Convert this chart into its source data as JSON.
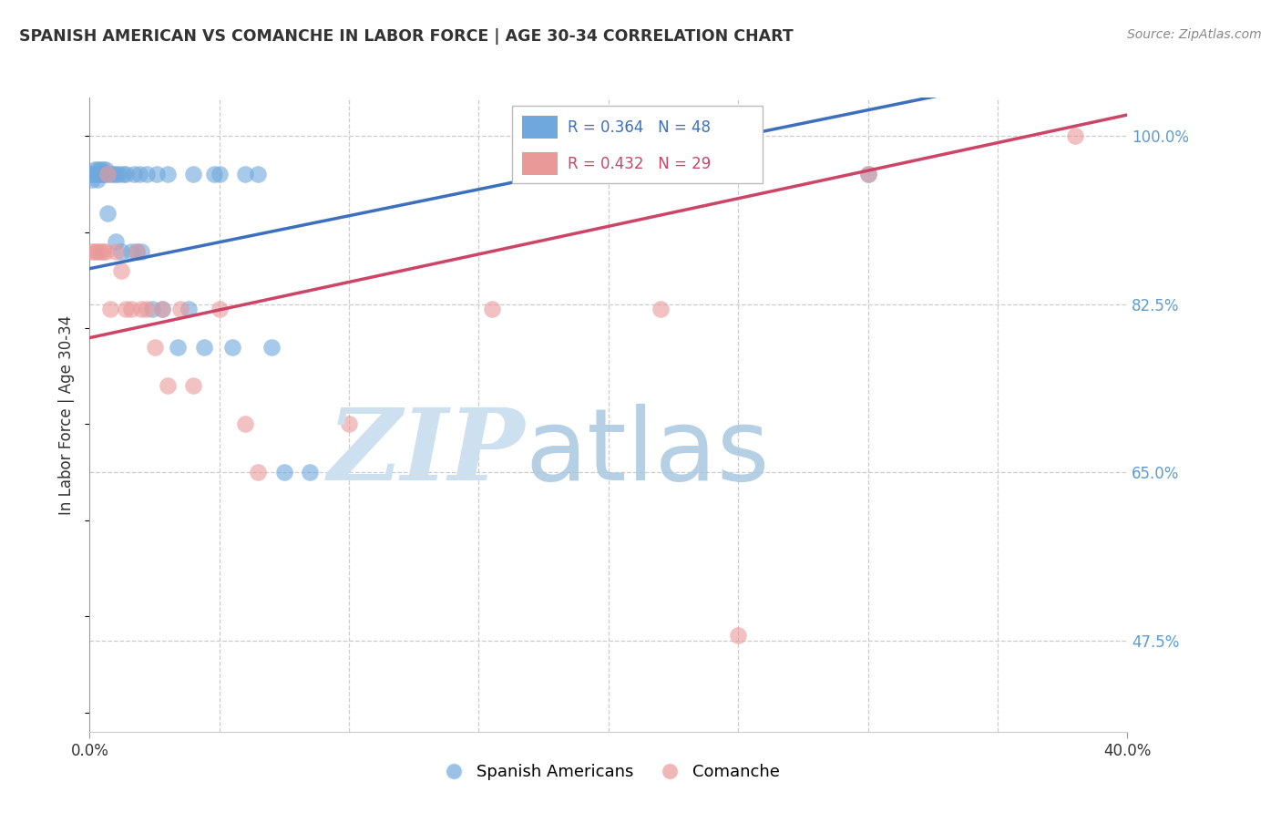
{
  "title": "SPANISH AMERICAN VS COMANCHE IN LABOR FORCE | AGE 30-34 CORRELATION CHART",
  "source": "Source: ZipAtlas.com",
  "ylabel": "In Labor Force | Age 30-34",
  "xmin": 0.0,
  "xmax": 0.4,
  "ymin": 0.38,
  "ymax": 1.04,
  "blue_color": "#6fa8dc",
  "pink_color": "#ea9999",
  "blue_line_color": "#3c6fbe",
  "pink_line_color": "#cc4466",
  "watermark_zip_color": "#cde0f0",
  "watermark_atlas_color": "#a8c8e0",
  "spanish_x": [
    0.001,
    0.001,
    0.002,
    0.002,
    0.003,
    0.003,
    0.003,
    0.004,
    0.004,
    0.005,
    0.005,
    0.005,
    0.006,
    0.006,
    0.007,
    0.008,
    0.009,
    0.01,
    0.01,
    0.011,
    0.012,
    0.013,
    0.014,
    0.016,
    0.017,
    0.018,
    0.019,
    0.02,
    0.022,
    0.024,
    0.026,
    0.028,
    0.03,
    0.034,
    0.038,
    0.04,
    0.044,
    0.048,
    0.05,
    0.055,
    0.06,
    0.065,
    0.07,
    0.075,
    0.085,
    0.2,
    0.255,
    0.3
  ],
  "spanish_y": [
    0.96,
    0.955,
    0.96,
    0.965,
    0.965,
    0.96,
    0.955,
    0.96,
    0.965,
    0.96,
    0.965,
    0.96,
    0.96,
    0.965,
    0.92,
    0.96,
    0.96,
    0.96,
    0.89,
    0.96,
    0.88,
    0.96,
    0.96,
    0.88,
    0.96,
    0.88,
    0.96,
    0.88,
    0.96,
    0.82,
    0.96,
    0.82,
    0.96,
    0.78,
    0.82,
    0.96,
    0.78,
    0.96,
    0.96,
    0.78,
    0.96,
    0.96,
    0.78,
    0.65,
    0.65,
    0.96,
    1.0,
    0.96
  ],
  "comanche_x": [
    0.001,
    0.002,
    0.003,
    0.004,
    0.005,
    0.006,
    0.007,
    0.008,
    0.01,
    0.012,
    0.014,
    0.016,
    0.018,
    0.02,
    0.022,
    0.025,
    0.028,
    0.03,
    0.035,
    0.04,
    0.05,
    0.06,
    0.065,
    0.1,
    0.155,
    0.22,
    0.25,
    0.3,
    0.38
  ],
  "comanche_y": [
    0.88,
    0.88,
    0.88,
    0.88,
    0.88,
    0.88,
    0.96,
    0.82,
    0.88,
    0.86,
    0.82,
    0.82,
    0.88,
    0.82,
    0.82,
    0.78,
    0.82,
    0.74,
    0.82,
    0.74,
    0.82,
    0.7,
    0.65,
    0.7,
    0.82,
    0.82,
    0.48,
    0.96,
    1.0
  ],
  "blue_intercept": 0.845,
  "blue_slope": 0.52,
  "pink_intercept": 0.79,
  "pink_slope": 0.57
}
